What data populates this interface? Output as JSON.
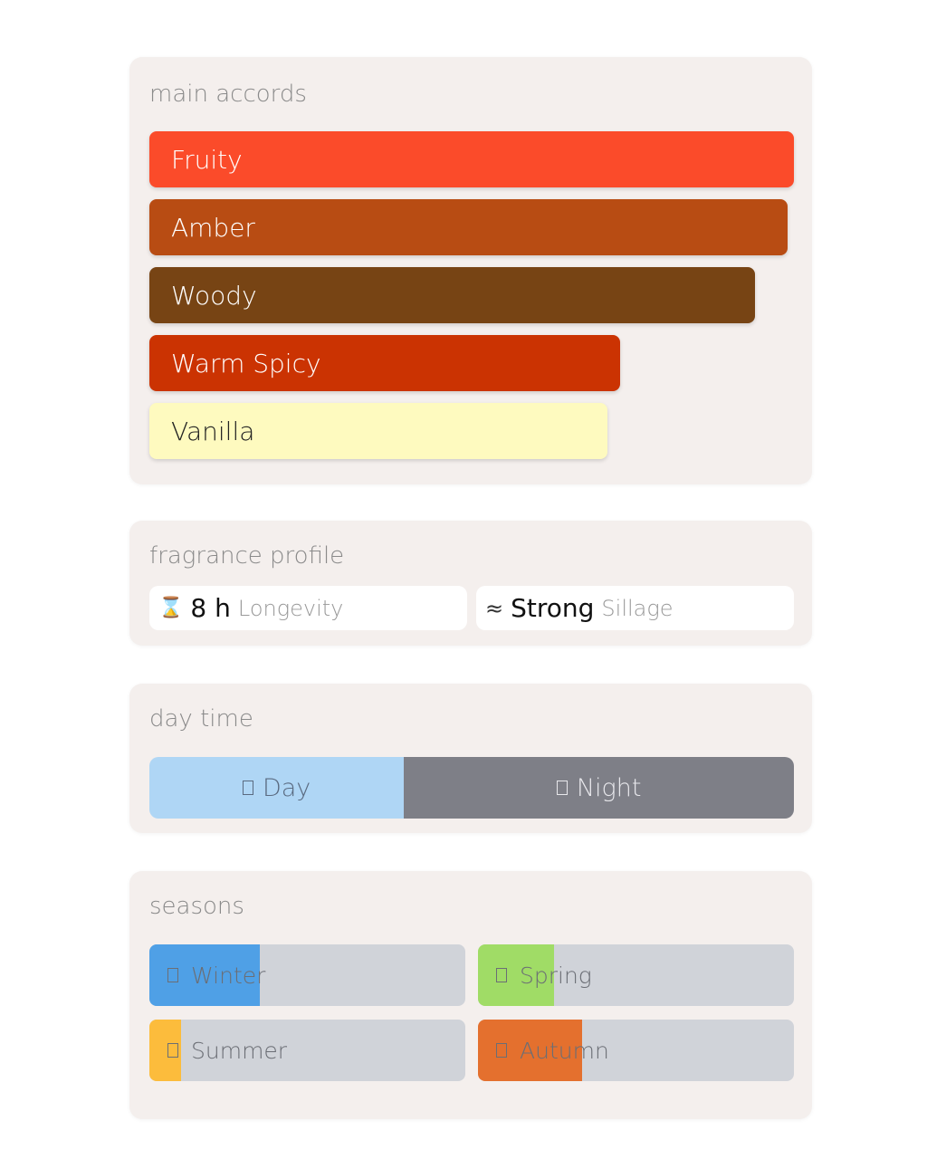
{
  "main_accords": {
    "title": "main accords",
    "items": [
      {
        "label": "Fruity",
        "percent": 100,
        "color": "#fb4b2a",
        "text_color": "#ffffff"
      },
      {
        "label": "Amber",
        "percent": 99,
        "color": "#b84c13",
        "text_color": "#ffffff"
      },
      {
        "label": "Woody",
        "percent": 94,
        "color": "#774414",
        "text_color": "#ffffff"
      },
      {
        "label": "Warm Spicy",
        "percent": 73,
        "color": "#cb3302",
        "text_color": "#ffffff"
      },
      {
        "label": "Vanilla",
        "percent": 71,
        "color": "#fefabf",
        "text_color": "#222222"
      }
    ]
  },
  "fragrance_profile": {
    "title": "fragrance profile",
    "longevity": {
      "icon": "hourglass-icon",
      "glyph": "⌛",
      "value": "8 h",
      "label": "Longevity"
    },
    "sillage": {
      "icon": "waves-icon",
      "glyph": "≈",
      "value": "Strong",
      "label": "Sillage"
    }
  },
  "day_time": {
    "title": "day time",
    "day": {
      "label": "Day",
      "percent": 39.5,
      "color": "#afd6f5"
    },
    "night": {
      "label": "Night",
      "percent": 60.5,
      "color": "#7e7f87"
    }
  },
  "seasons": {
    "title": "seasons",
    "items": [
      {
        "label": "Winter",
        "percent": 35,
        "color": "#4fa0e6"
      },
      {
        "label": "Spring",
        "percent": 24,
        "color": "#a0dc66"
      },
      {
        "label": "Summer",
        "percent": 10,
        "color": "#fcbc3c"
      },
      {
        "label": "Autumn",
        "percent": 33,
        "color": "#e4702e"
      }
    ]
  }
}
